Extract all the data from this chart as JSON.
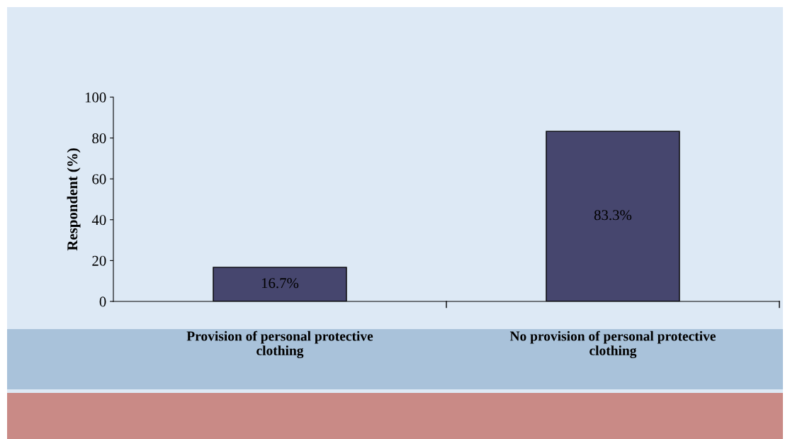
{
  "chart_data": {
    "type": "bar",
    "ylabel": "Respondent (%)",
    "categories": [
      "Provision of personal protective clothing",
      "No provision of personal protective clothing"
    ],
    "values": [
      16.7,
      83.3
    ],
    "value_labels": [
      "16.7%",
      "83.3%"
    ],
    "color": "#46466e",
    "ylim": [
      0,
      100
    ],
    "yticks": [
      0,
      20,
      40,
      60,
      80,
      100
    ],
    "grid": false,
    "legend": false
  }
}
